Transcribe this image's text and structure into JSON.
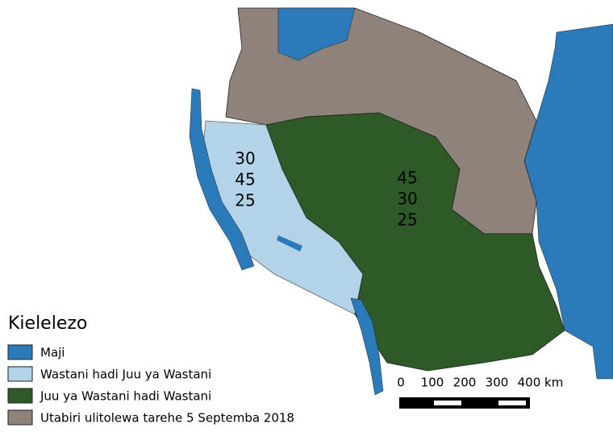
{
  "legend": {
    "title": "Kielelezo",
    "items": [
      "Maji",
      "Wastani hadi Juu ya Wastani",
      "Juu ya Wastani hadi Wastani",
      "Utabiri ulitolewa tarehe 5 Septemba 2018"
    ]
  },
  "regions": [
    {
      "lines": [
        "30",
        "45",
        "25"
      ]
    },
    {
      "lines": [
        "45",
        "30",
        "25"
      ]
    }
  ],
  "scale_bar": {
    "labels": [
      "0",
      "100",
      "200",
      "300",
      "400 km"
    ]
  }
}
